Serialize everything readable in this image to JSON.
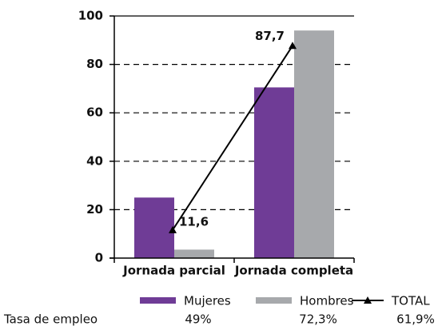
{
  "chart_data": {
    "type": "bar",
    "categories": [
      "Jornada parcial",
      "Jornada completa"
    ],
    "series": [
      {
        "name": "Mujeres",
        "color": "#6f3c96",
        "values": [
          25,
          70.5
        ],
        "rate": 49,
        "rate_label": "49%"
      },
      {
        "name": "Hombres",
        "color": "#a7a9ac",
        "values": [
          3.5,
          94
        ],
        "rate": 72.3,
        "rate_label": "72,3%"
      },
      {
        "name": "TOTAL",
        "type": "line",
        "color": "#000000",
        "values": [
          11.6,
          87.7
        ],
        "value_labels": [
          "11,6",
          "87,7"
        ],
        "rate": 61.9,
        "rate_label": "61,9%"
      }
    ],
    "rate_title": "Tasa de empleo",
    "ylim": [
      0,
      100
    ],
    "yticks": [
      0,
      20,
      40,
      60,
      80,
      100
    ],
    "grid": true
  }
}
